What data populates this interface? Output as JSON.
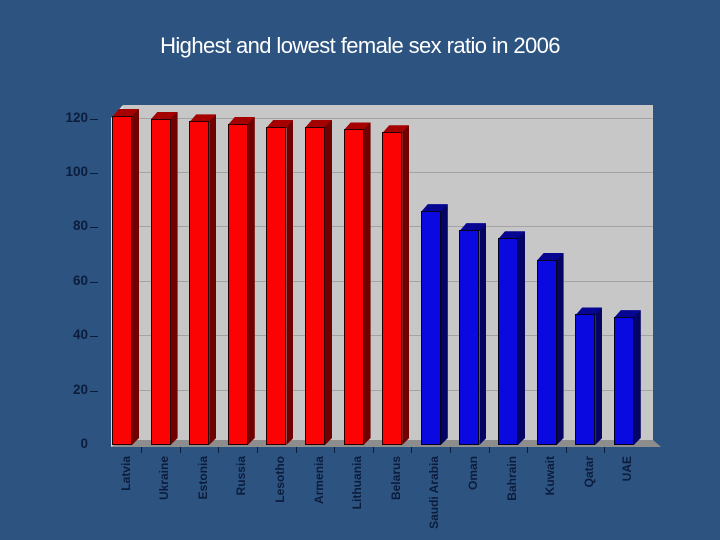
{
  "slide": {
    "background_color": "#2D5480",
    "title_color": "#FFFFFF"
  },
  "chart_data": {
    "type": "bar",
    "style": "3d-column",
    "title": "Highest and lowest female sex ratio in 2006",
    "categories": [
      "Latvia",
      "Ukraine",
      "Estonia",
      "Russia",
      "Lesotho",
      "Armenia",
      "Lithuania",
      "Belarus",
      "Saudi Arabia",
      "Oman",
      "Bahrain",
      "Kuwait",
      "Qatar",
      "UAE"
    ],
    "values": [
      121,
      120,
      119,
      118,
      117,
      117,
      116,
      115,
      86,
      79,
      76,
      68,
      48,
      47
    ],
    "point_colors": [
      "#FB0303",
      "#FB0303",
      "#FB0303",
      "#FB0303",
      "#FB0303",
      "#FB0303",
      "#FB0303",
      "#FB0303",
      "#0A0AE0",
      "#0A0AE0",
      "#0A0AE0",
      "#0A0AE0",
      "#0A0AE0",
      "#0A0AE0"
    ],
    "groups": [
      {
        "label": "highest",
        "color": "#FB0303",
        "categories": [
          "Latvia",
          "Ukraine",
          "Estonia",
          "Russia",
          "Lesotho",
          "Armenia",
          "Lithuania",
          "Belarus"
        ]
      },
      {
        "label": "lowest",
        "color": "#0A0AE0",
        "categories": [
          "Saudi Arabia",
          "Oman",
          "Bahrain",
          "Kuwait",
          "Qatar",
          "UAE"
        ]
      }
    ],
    "yticks": [
      0,
      20,
      40,
      60,
      80,
      100,
      120
    ],
    "ylim": [
      0,
      128
    ],
    "xlabel": "",
    "ylabel": "",
    "grid": true,
    "legend": false,
    "layout": {
      "wall_color": "#C7C7C7",
      "side_wall_color": "#D8D8D8",
      "floor_color": "#8D8D8D",
      "gridline_color": "#A3A3A3",
      "axis_label_color": "#0B1C3C"
    }
  }
}
